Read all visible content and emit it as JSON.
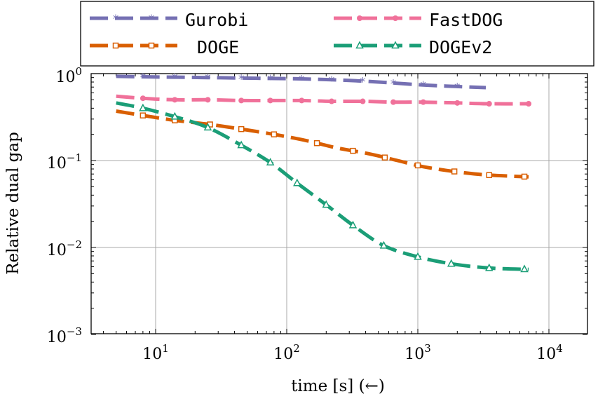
{
  "chart_data": {
    "type": "line",
    "xscale": "log",
    "yscale": "log",
    "xlabel": "time [s] (←)",
    "ylabel": "Relative dual gap",
    "xlim": [
      3,
      12000
    ],
    "ylim": [
      0.001,
      1
    ],
    "x_ticks": [
      {
        "value": 10,
        "base": "10",
        "exp": "1"
      },
      {
        "value": 100,
        "base": "10",
        "exp": "2"
      },
      {
        "value": 1000,
        "base": "10",
        "exp": "3"
      },
      {
        "value": 10000,
        "base": "10",
        "exp": "4"
      }
    ],
    "y_ticks": [
      {
        "value": 1,
        "base": "10",
        "exp": "0"
      },
      {
        "value": 0.1,
        "base": "10",
        "exp": "−1"
      },
      {
        "value": 0.01,
        "base": "10",
        "exp": "−2"
      },
      {
        "value": 0.001,
        "base": "10",
        "exp": "−3"
      }
    ],
    "grid": true,
    "legend_position": "top",
    "series": [
      {
        "name": "Gurobi",
        "color": "#7570b3",
        "marker": "star",
        "x": [
          5,
          8,
          14,
          25,
          45,
          75,
          130,
          220,
          380,
          650,
          1100,
          2000,
          3300
        ],
        "y": [
          0.93,
          0.92,
          0.91,
          0.9,
          0.89,
          0.88,
          0.87,
          0.85,
          0.82,
          0.78,
          0.74,
          0.71,
          0.69
        ],
        "marker_x": [
          8,
          14,
          25,
          45,
          75,
          130,
          220,
          380,
          650,
          1100,
          2000
        ]
      },
      {
        "name": "FastDOG",
        "color": "#f0719a",
        "marker": "circle",
        "x": [
          5,
          8,
          14,
          25,
          45,
          75,
          130,
          220,
          380,
          650,
          1100,
          2000,
          3500,
          7000
        ],
        "y": [
          0.55,
          0.52,
          0.5,
          0.5,
          0.49,
          0.49,
          0.49,
          0.48,
          0.48,
          0.47,
          0.47,
          0.46,
          0.45,
          0.45
        ],
        "marker_x": [
          8,
          14,
          25,
          45,
          75,
          130,
          220,
          380,
          650,
          1100,
          2000,
          3500,
          7000
        ]
      },
      {
        "name": "DOGE",
        "color": "#d95f02",
        "marker": "square",
        "x": [
          5,
          8,
          14,
          26,
          45,
          80,
          140,
          240,
          420,
          700,
          1100,
          2000,
          3500,
          7000
        ],
        "y": [
          0.37,
          0.33,
          0.29,
          0.26,
          0.23,
          0.2,
          0.17,
          0.14,
          0.12,
          0.1,
          0.085,
          0.074,
          0.068,
          0.065
        ],
        "marker_x": [
          8,
          14,
          26,
          45,
          80,
          170,
          320,
          560,
          1000,
          1900,
          3500,
          6500
        ]
      },
      {
        "name": "DOGEv2",
        "color": "#1b9e77",
        "marker": "triangle",
        "x": [
          5,
          8,
          14,
          25,
          45,
          75,
          120,
          200,
          320,
          550,
          1000,
          1800,
          3500,
          7000
        ],
        "y": [
          0.46,
          0.4,
          0.32,
          0.24,
          0.15,
          0.095,
          0.055,
          0.031,
          0.018,
          0.0105,
          0.0078,
          0.0065,
          0.0058,
          0.0056
        ],
        "marker_x": [
          8,
          14,
          25,
          45,
          75,
          120,
          200,
          320,
          550,
          1000,
          1800,
          3500,
          6500
        ]
      }
    ]
  }
}
